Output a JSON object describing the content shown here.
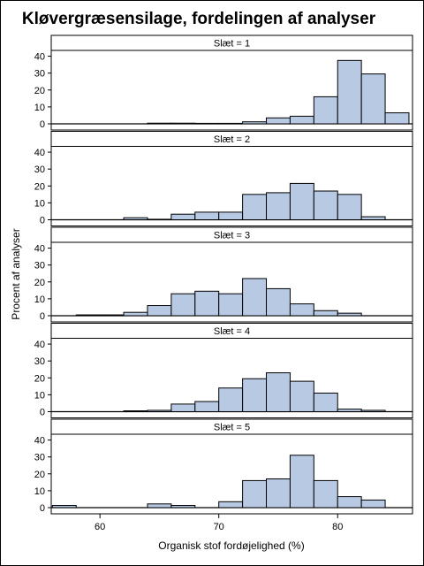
{
  "chart_data": {
    "type": "bar",
    "title": "Kløvergræsensilage, fordelingen af analyser",
    "xlabel": "Organisk stof fordøjelighed (%)",
    "ylabel": "Procent af analyser",
    "xlim": [
      55.9,
      86.3
    ],
    "ylim": [
      0,
      45
    ],
    "x_ticks": [
      60,
      70,
      80
    ],
    "y_ticks": [
      0,
      10,
      20,
      30,
      40
    ],
    "bin_width": 2,
    "grid": false,
    "bar_color": "#b7c9e3",
    "panels": [
      {
        "label": "Slæt = 1",
        "bins": [
          {
            "x": 65,
            "y": 0.4
          },
          {
            "x": 67,
            "y": 0.4
          },
          {
            "x": 69,
            "y": 0.3
          },
          {
            "x": 71,
            "y": 0.3
          },
          {
            "x": 73,
            "y": 1.2
          },
          {
            "x": 75,
            "y": 3.5
          },
          {
            "x": 77,
            "y": 4.5
          },
          {
            "x": 79,
            "y": 16
          },
          {
            "x": 81,
            "y": 37.5
          },
          {
            "x": 83,
            "y": 29.5
          },
          {
            "x": 85,
            "y": 6.5
          }
        ]
      },
      {
        "label": "Slæt = 2",
        "bins": [
          {
            "x": 63,
            "y": 1.2
          },
          {
            "x": 65,
            "y": 0.3
          },
          {
            "x": 67,
            "y": 3.3
          },
          {
            "x": 69,
            "y": 4.5
          },
          {
            "x": 71,
            "y": 4.5
          },
          {
            "x": 73,
            "y": 15
          },
          {
            "x": 75,
            "y": 16
          },
          {
            "x": 77,
            "y": 21.5
          },
          {
            "x": 79,
            "y": 17
          },
          {
            "x": 81,
            "y": 15
          },
          {
            "x": 83,
            "y": 1.8
          }
        ]
      },
      {
        "label": "Slæt = 3",
        "bins": [
          {
            "x": 59,
            "y": 0.5
          },
          {
            "x": 61,
            "y": 0.5
          },
          {
            "x": 63,
            "y": 2
          },
          {
            "x": 65,
            "y": 6
          },
          {
            "x": 67,
            "y": 13
          },
          {
            "x": 69,
            "y": 14.5
          },
          {
            "x": 71,
            "y": 13
          },
          {
            "x": 73,
            "y": 22
          },
          {
            "x": 75,
            "y": 16
          },
          {
            "x": 77,
            "y": 7
          },
          {
            "x": 79,
            "y": 3
          },
          {
            "x": 81,
            "y": 1.5
          }
        ]
      },
      {
        "label": "Slæt = 4",
        "bins": [
          {
            "x": 63,
            "y": 0.5
          },
          {
            "x": 65,
            "y": 0.8
          },
          {
            "x": 67,
            "y": 4.5
          },
          {
            "x": 69,
            "y": 6
          },
          {
            "x": 71,
            "y": 14
          },
          {
            "x": 73,
            "y": 19.5
          },
          {
            "x": 75,
            "y": 23
          },
          {
            "x": 77,
            "y": 18
          },
          {
            "x": 79,
            "y": 11
          },
          {
            "x": 81,
            "y": 1.5
          },
          {
            "x": 83,
            "y": 0.8
          }
        ]
      },
      {
        "label": "Slæt = 5",
        "bins": [
          {
            "x": 57,
            "y": 1.3
          },
          {
            "x": 65,
            "y": 2.2
          },
          {
            "x": 67,
            "y": 1.3
          },
          {
            "x": 71,
            "y": 3.5
          },
          {
            "x": 73,
            "y": 16
          },
          {
            "x": 75,
            "y": 17
          },
          {
            "x": 77,
            "y": 31
          },
          {
            "x": 79,
            "y": 16
          },
          {
            "x": 81,
            "y": 6.5
          },
          {
            "x": 83,
            "y": 4.5
          }
        ]
      }
    ]
  }
}
